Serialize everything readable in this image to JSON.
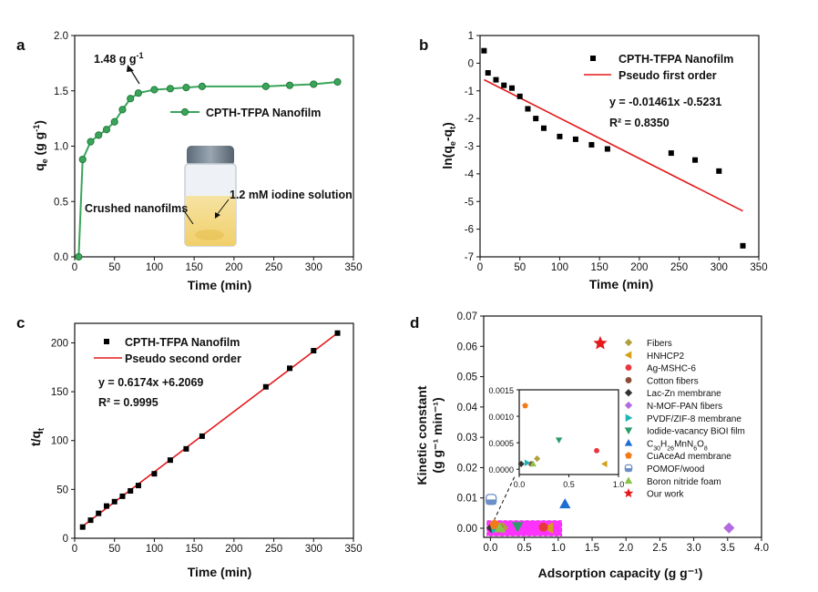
{
  "panels": {
    "a": {
      "label": "a"
    },
    "b": {
      "label": "b"
    },
    "c": {
      "label": "c"
    },
    "d": {
      "label": "d"
    }
  },
  "colors": {
    "green": "#3aa55a",
    "red": "#e41a1c",
    "black": "#000000",
    "pink": "#ff33ff",
    "magenta": "#d93ad9"
  },
  "chart_data": [
    {
      "id": "a",
      "type": "line",
      "xlabel": "Time (min)",
      "ylabel": "q_e (g g^-1)",
      "xlim": [
        0,
        350
      ],
      "ylim": [
        0.0,
        2.0
      ],
      "xticks": [
        "0",
        "50",
        "100",
        "150",
        "200",
        "250",
        "300",
        "350"
      ],
      "yticks": [
        "0.0",
        "0.5",
        "1.0",
        "1.5",
        "2.0"
      ],
      "series": [
        {
          "name": "CPTH-TFPA Nanofilm",
          "x": [
            5,
            10,
            20,
            30,
            40,
            50,
            60,
            70,
            80,
            100,
            120,
            140,
            160,
            240,
            270,
            300,
            330
          ],
          "y": [
            0.0,
            0.88,
            1.04,
            1.1,
            1.15,
            1.22,
            1.33,
            1.43,
            1.48,
            1.51,
            1.52,
            1.53,
            1.54,
            1.54,
            1.55,
            1.56,
            1.58
          ]
        }
      ],
      "annotation": "1.48 g g-1",
      "inset_labels": {
        "left": "Crushed nanofilms",
        "right": "1.2 mM iodine solution"
      }
    },
    {
      "id": "b",
      "type": "scatter",
      "xlabel": "Time (min)",
      "ylabel": "ln(q_e-q_t)",
      "xlim": [
        0,
        350
      ],
      "ylim": [
        -7,
        1
      ],
      "xticks": [
        "0",
        "50",
        "100",
        "150",
        "200",
        "250",
        "300",
        "350"
      ],
      "yticks": [
        "1",
        "0",
        "-1",
        "-2",
        "-3",
        "-4",
        "-5",
        "-6",
        "-7"
      ],
      "series": [
        {
          "name": "CPTH-TFPA Nanofilm",
          "x": [
            5,
            10,
            20,
            30,
            40,
            50,
            60,
            70,
            80,
            100,
            120,
            140,
            160,
            240,
            270,
            300,
            330
          ],
          "y": [
            0.45,
            -0.35,
            -0.6,
            -0.8,
            -0.9,
            -1.2,
            -1.65,
            -2.0,
            -2.35,
            -2.65,
            -2.75,
            -2.95,
            -3.1,
            -3.25,
            -3.5,
            -3.9,
            -6.6
          ]
        },
        {
          "name": "Pseudo first order",
          "x": [
            5,
            330
          ],
          "y": [
            -0.596,
            -5.344
          ]
        }
      ],
      "equation": "y  =  -0.01461x -0.5231",
      "r2": "R² =  0.8350"
    },
    {
      "id": "c",
      "type": "scatter",
      "xlabel": "Time (min)",
      "ylabel": "t/q_t",
      "xlim": [
        0,
        350
      ],
      "ylim": [
        0,
        220
      ],
      "xticks": [
        "0",
        "50",
        "100",
        "150",
        "200",
        "250",
        "300",
        "350"
      ],
      "yticks": [
        "0",
        "50",
        "100",
        "150",
        "200"
      ],
      "series": [
        {
          "name": "CPTH-TFPA Nanofilm",
          "x": [
            10,
            20,
            30,
            40,
            50,
            60,
            70,
            80,
            100,
            120,
            140,
            160,
            240,
            270,
            300,
            330
          ],
          "y": [
            11.5,
            18.5,
            25.5,
            33,
            37.5,
            43,
            48.5,
            54,
            66,
            80,
            91.5,
            104.5,
            155,
            174,
            192,
            210
          ]
        },
        {
          "name": "Pseudo second order",
          "x": [
            10,
            330
          ],
          "y": [
            12.38,
            209.95
          ]
        }
      ],
      "equation": "y  = 0.6174x +6.2069",
      "r2": "R² = 0.9995"
    },
    {
      "id": "d",
      "type": "scatter",
      "xlabel": "Adsorption capacity (g g⁻¹)",
      "ylabel_line1": "Kinetic constant",
      "ylabel_line2": "(g g⁻¹ min⁻¹)",
      "xlim": [
        -0.1,
        4.0
      ],
      "ylim": [
        -0.003,
        0.07
      ],
      "xticks": [
        "0.0",
        "0.5",
        "1.0",
        "1.5",
        "2.0",
        "2.5",
        "3.0",
        "3.5",
        "4.0"
      ],
      "yticks": [
        "0.00",
        "0.01",
        "0.02",
        "0.03",
        "0.04",
        "0.05",
        "0.06",
        "0.07"
      ],
      "series": [
        {
          "name": "Fibers",
          "color": "#b0a03a",
          "marker": "diamond",
          "x": [
            0.18
          ],
          "y": [
            0.0002
          ]
        },
        {
          "name": "HNHCP2",
          "color": "#d4a017",
          "marker": "triangle-left",
          "x": [
            0.86
          ],
          "y": [
            0.0001
          ]
        },
        {
          "name": "Ag-MSHC-6",
          "color": "#e8383d",
          "marker": "circle",
          "x": [
            0.78
          ],
          "y": [
            0.00035
          ]
        },
        {
          "name": "Cotton fibers",
          "color": "#8a4d3a",
          "marker": "circle",
          "x": [
            0.12
          ],
          "y": [
            0.0001
          ]
        },
        {
          "name": "Lac-Zn membrane",
          "color": "#333333",
          "marker": "diamond",
          "x": [
            0.02
          ],
          "y": [
            0.0001
          ]
        },
        {
          "name": "N-MOF-PAN fibers",
          "color": "#b36be0",
          "marker": "diamond",
          "x": [
            3.52
          ],
          "y": [
            0.0001
          ]
        },
        {
          "name": "PVDF/ZIF-8 membrane",
          "color": "#1fb5b5",
          "marker": "triangle-right",
          "x": [
            0.08
          ],
          "y": [
            0.00012
          ]
        },
        {
          "name": "Iodide-vacancy BiOI film",
          "color": "#2a9d6a",
          "marker": "triangle-down",
          "x": [
            0.4
          ],
          "y": [
            0.00055
          ]
        },
        {
          "name": "C30H26MnN6O8",
          "color": "#1f6fd1",
          "marker": "triangle-up",
          "x": [
            1.1
          ],
          "y": [
            0.008
          ]
        },
        {
          "name": "CuAceAd membrane",
          "color": "#f07b1a",
          "marker": "pentagon",
          "x": [
            0.06
          ],
          "y": [
            0.0012
          ]
        },
        {
          "name": "POMOF/wood",
          "color": "#6a8fc9",
          "marker": "square-half",
          "x": [
            0.01
          ],
          "y": [
            0.0095
          ]
        },
        {
          "name": "Boron nitride foam",
          "color": "#8bc34a",
          "marker": "triangle-up",
          "x": [
            0.14
          ],
          "y": [
            0.0001
          ]
        },
        {
          "name": "Our work",
          "color": "#e41a1c",
          "marker": "star",
          "x": [
            1.62
          ],
          "y": [
            0.061
          ]
        }
      ],
      "inset": {
        "xlim": [
          0.0,
          1.0
        ],
        "ylim": [
          -0.0001,
          0.0015
        ],
        "xticks": [
          "0.0",
          "0.5",
          "1.0"
        ],
        "yticks": [
          "0.0000",
          "0.0005",
          "0.0010",
          "0.0015"
        ]
      }
    }
  ]
}
